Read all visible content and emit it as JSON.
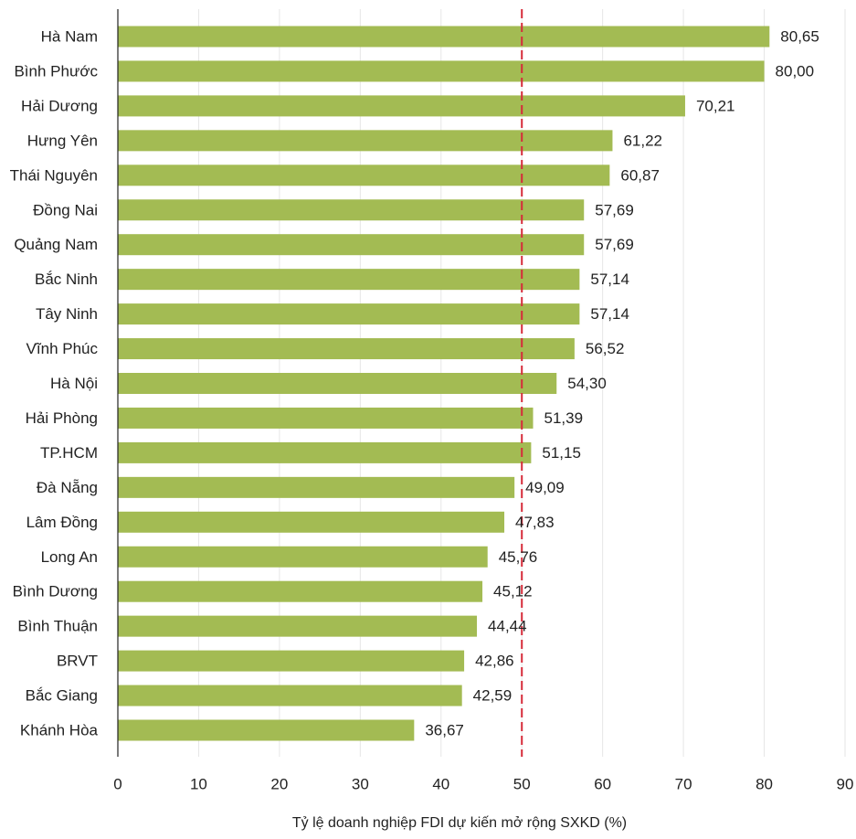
{
  "chart_data": {
    "type": "bar",
    "orientation": "horizontal",
    "title": "",
    "xlabel": "Tỷ lệ doanh nghiệp FDI dự kiến mở rộng SXKD (%)",
    "ylabel": "",
    "categories": [
      "Hà Nam",
      "Bình Phước",
      "Hải Dương",
      "Hưng Yên",
      "Thái Nguyên",
      "Đồng Nai",
      "Quảng Nam",
      "Bắc Ninh",
      "Tây Ninh",
      "Vĩnh Phúc",
      "Hà Nội",
      "Hải Phòng",
      "TP.HCM",
      "Đà Nẵng",
      "Lâm Đồng",
      "Long An",
      "Bình Dương",
      "Bình Thuận",
      "BRVT",
      "Bắc Giang",
      "Khánh Hòa"
    ],
    "values": [
      80.65,
      80.0,
      70.21,
      61.22,
      60.87,
      57.69,
      57.69,
      57.14,
      57.14,
      56.52,
      54.3,
      51.39,
      51.15,
      49.09,
      47.83,
      45.76,
      45.12,
      44.44,
      42.86,
      42.59,
      36.67
    ],
    "value_labels": [
      "80,65",
      "80,00",
      "70,21",
      "61,22",
      "60,87",
      "57,69",
      "57,69",
      "57,14",
      "57,14",
      "56,52",
      "54,30",
      "51,39",
      "51,15",
      "49,09",
      "47,83",
      "45,76",
      "45,12",
      "44,44",
      "42,86",
      "42,59",
      "36,67"
    ],
    "xlim": [
      0,
      90
    ],
    "xticks": [
      0,
      10,
      20,
      30,
      40,
      50,
      60,
      70,
      80,
      90
    ],
    "xtick_labels": [
      "0",
      "10",
      "20",
      "30",
      "40",
      "50",
      "60",
      "70",
      "80",
      "90"
    ],
    "reference_line": {
      "value": 50,
      "style": "dashed",
      "color": "#d62b3a"
    },
    "grid": "vertical",
    "legend": "none",
    "colors": {
      "bar": "#a3bb53",
      "grid": "#e6e6e6",
      "axis": "#222222"
    }
  }
}
